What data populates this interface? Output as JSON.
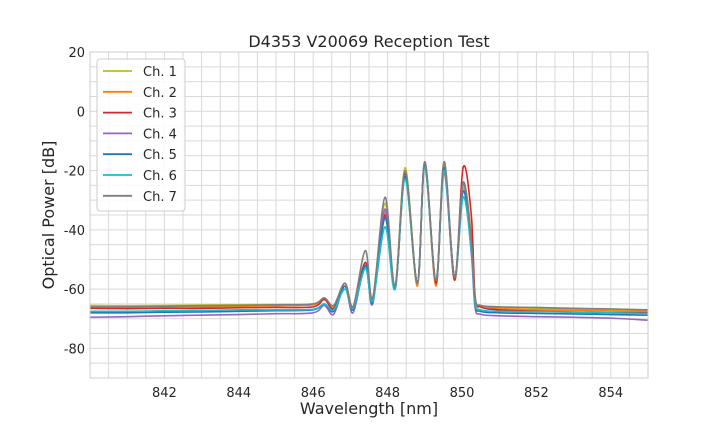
{
  "chart_data": {
    "type": "line",
    "title": "D4353 V20069 Reception Test",
    "xlabel": "Wavelength [nm]",
    "ylabel": "Optical Power [dB]",
    "xlim": [
      840,
      855
    ],
    "ylim": [
      -90,
      20
    ],
    "xticks": [
      842,
      844,
      846,
      848,
      850,
      852,
      854
    ],
    "yticks": [
      -80,
      -60,
      -40,
      -20,
      0,
      20
    ],
    "grid": true,
    "minor_grid": true,
    "legend_placement": "upper-left",
    "x": [
      840,
      841,
      842,
      843,
      844,
      845,
      846,
      846.3,
      846.55,
      846.85,
      847.07,
      847.4,
      847.6,
      847.93,
      848.2,
      848.47,
      848.8,
      849.0,
      849.3,
      849.52,
      849.8,
      850.03,
      850.25,
      850.35,
      850.5,
      851,
      852,
      853,
      854,
      855
    ],
    "series": [
      {
        "name": "Ch. 1",
        "color": "#bcbd22",
        "values": [
          -65.5,
          -65.6,
          -65.5,
          -65.4,
          -65.3,
          -65.2,
          -65,
          -63,
          -66,
          -58,
          -66,
          -51,
          -63,
          -31,
          -59,
          -19,
          -58,
          -18,
          -57,
          -18,
          -56,
          -26,
          -45,
          -63,
          -65.5,
          -66,
          -66.5,
          -66.8,
          -67,
          -67.2
        ]
      },
      {
        "name": "Ch. 2",
        "color": "#ff7f0e",
        "values": [
          -66,
          -66.1,
          -66,
          -66,
          -65.8,
          -65.6,
          -65.3,
          -63.5,
          -66.5,
          -59,
          -66.5,
          -52,
          -64,
          -34,
          -60,
          -22,
          -59,
          -18,
          -59,
          -17,
          -57,
          -25,
          -42,
          -64,
          -66,
          -66.5,
          -67,
          -67.2,
          -67.4,
          -67.5
        ]
      },
      {
        "name": "Ch. 3",
        "color": "#d62728",
        "values": [
          -66.5,
          -66.6,
          -66.5,
          -66.5,
          -66.3,
          -66.2,
          -66,
          -63.5,
          -66.5,
          -58,
          -66,
          -51,
          -64,
          -35,
          -60,
          -21,
          -58,
          -17,
          -58,
          -19,
          -57,
          -19,
          -35,
          -62,
          -66,
          -67,
          -67.5,
          -67.8,
          -68,
          -68
        ]
      },
      {
        "name": "Ch. 4",
        "color": "#9467bd",
        "values": [
          -69.5,
          -69.3,
          -69,
          -68.8,
          -68.6,
          -68.3,
          -68,
          -65.5,
          -68.5,
          -59,
          -68,
          -52,
          -65,
          -33,
          -60,
          -22,
          -58,
          -19,
          -57,
          -21,
          -56,
          -24,
          -48,
          -66,
          -68.5,
          -69,
          -69.3,
          -69.5,
          -69.8,
          -70.5
        ]
      },
      {
        "name": "Ch. 5",
        "color": "#1f77b4",
        "values": [
          -68,
          -68,
          -67.8,
          -67.7,
          -67.5,
          -67.3,
          -67,
          -65,
          -67.5,
          -59,
          -67,
          -52,
          -64.5,
          -36,
          -60,
          -22,
          -58,
          -18,
          -57,
          -19,
          -56,
          -27,
          -46,
          -65,
          -67.5,
          -68,
          -68.2,
          -68.4,
          -68.6,
          -68.8
        ]
      },
      {
        "name": "Ch. 6",
        "color": "#17becf",
        "values": [
          -67.5,
          -67.5,
          -67.3,
          -67.2,
          -67,
          -67,
          -66.8,
          -65,
          -67,
          -60,
          -66.5,
          -53,
          -64,
          -39,
          -60,
          -23,
          -58,
          -19,
          -57,
          -20,
          -56,
          -29,
          -47,
          -64.5,
          -67,
          -67.5,
          -67.6,
          -67.8,
          -68,
          -68.2
        ]
      },
      {
        "name": "Ch. 7",
        "color": "#7f7f7f",
        "values": [
          -66,
          -66,
          -65.8,
          -65.6,
          -65.5,
          -65.3,
          -65,
          -63,
          -65.5,
          -58,
          -66,
          -47,
          -63,
          -29,
          -59,
          -20,
          -58,
          -17,
          -57,
          -17,
          -56,
          -24,
          -44,
          -63,
          -65.5,
          -66,
          -66.2,
          -66.5,
          -66.7,
          -67
        ]
      }
    ]
  }
}
